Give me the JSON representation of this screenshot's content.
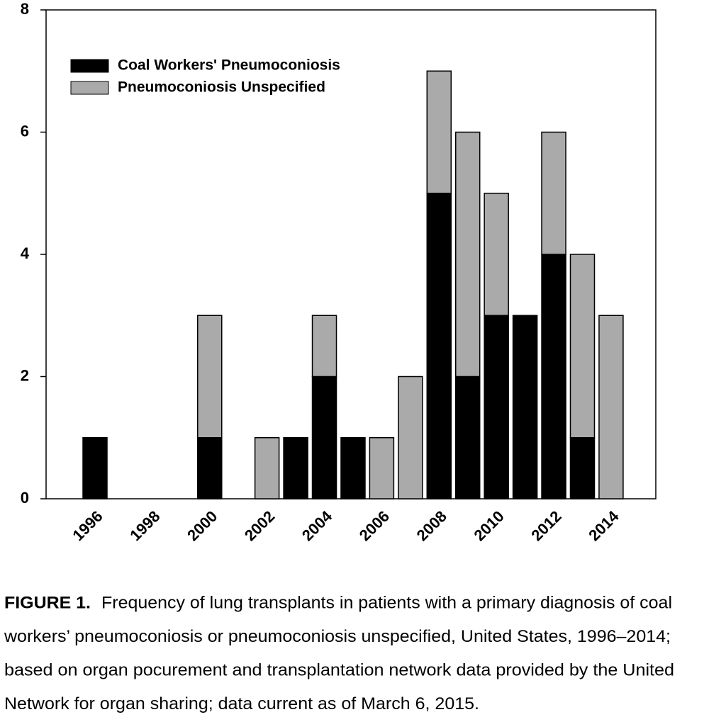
{
  "chart_data": {
    "type": "stacked-bar",
    "categories": [
      "1996",
      null,
      "1998",
      null,
      "2000",
      null,
      "2002",
      null,
      "2004",
      null,
      "2006",
      null,
      "2008",
      null,
      "2010",
      null,
      "2012",
      null,
      "2014"
    ],
    "series": [
      {
        "name": "Coal Workers' Pneumoconiosis",
        "color": "#000000",
        "values": [
          1,
          0,
          0,
          0,
          1,
          0,
          0,
          1,
          2,
          1,
          0,
          0,
          5,
          2,
          3,
          3,
          4,
          1,
          0
        ]
      },
      {
        "name": "Pneumoconiosis Unspecified",
        "color": "#aaaaaa",
        "values": [
          0,
          0,
          0,
          0,
          2,
          0,
          1,
          0,
          1,
          0,
          1,
          2,
          2,
          4,
          2,
          0,
          2,
          3,
          3
        ]
      }
    ],
    "ylim": [
      0,
      8
    ],
    "yticks": [
      0,
      2,
      4,
      6,
      8
    ],
    "legend": "upper-left"
  },
  "caption": {
    "label": "FIGURE 1.",
    "lines": [
      "Frequency of lung transplants in patients with a primary diagnosis of coal",
      "workers’ pneumoconiosis or pneumoconiosis unspecified, United States, 1996–2014;",
      "based on organ pocurement and transplantation network data provided by the United",
      "Network for organ sharing; data current as of March 6, 2015."
    ]
  }
}
